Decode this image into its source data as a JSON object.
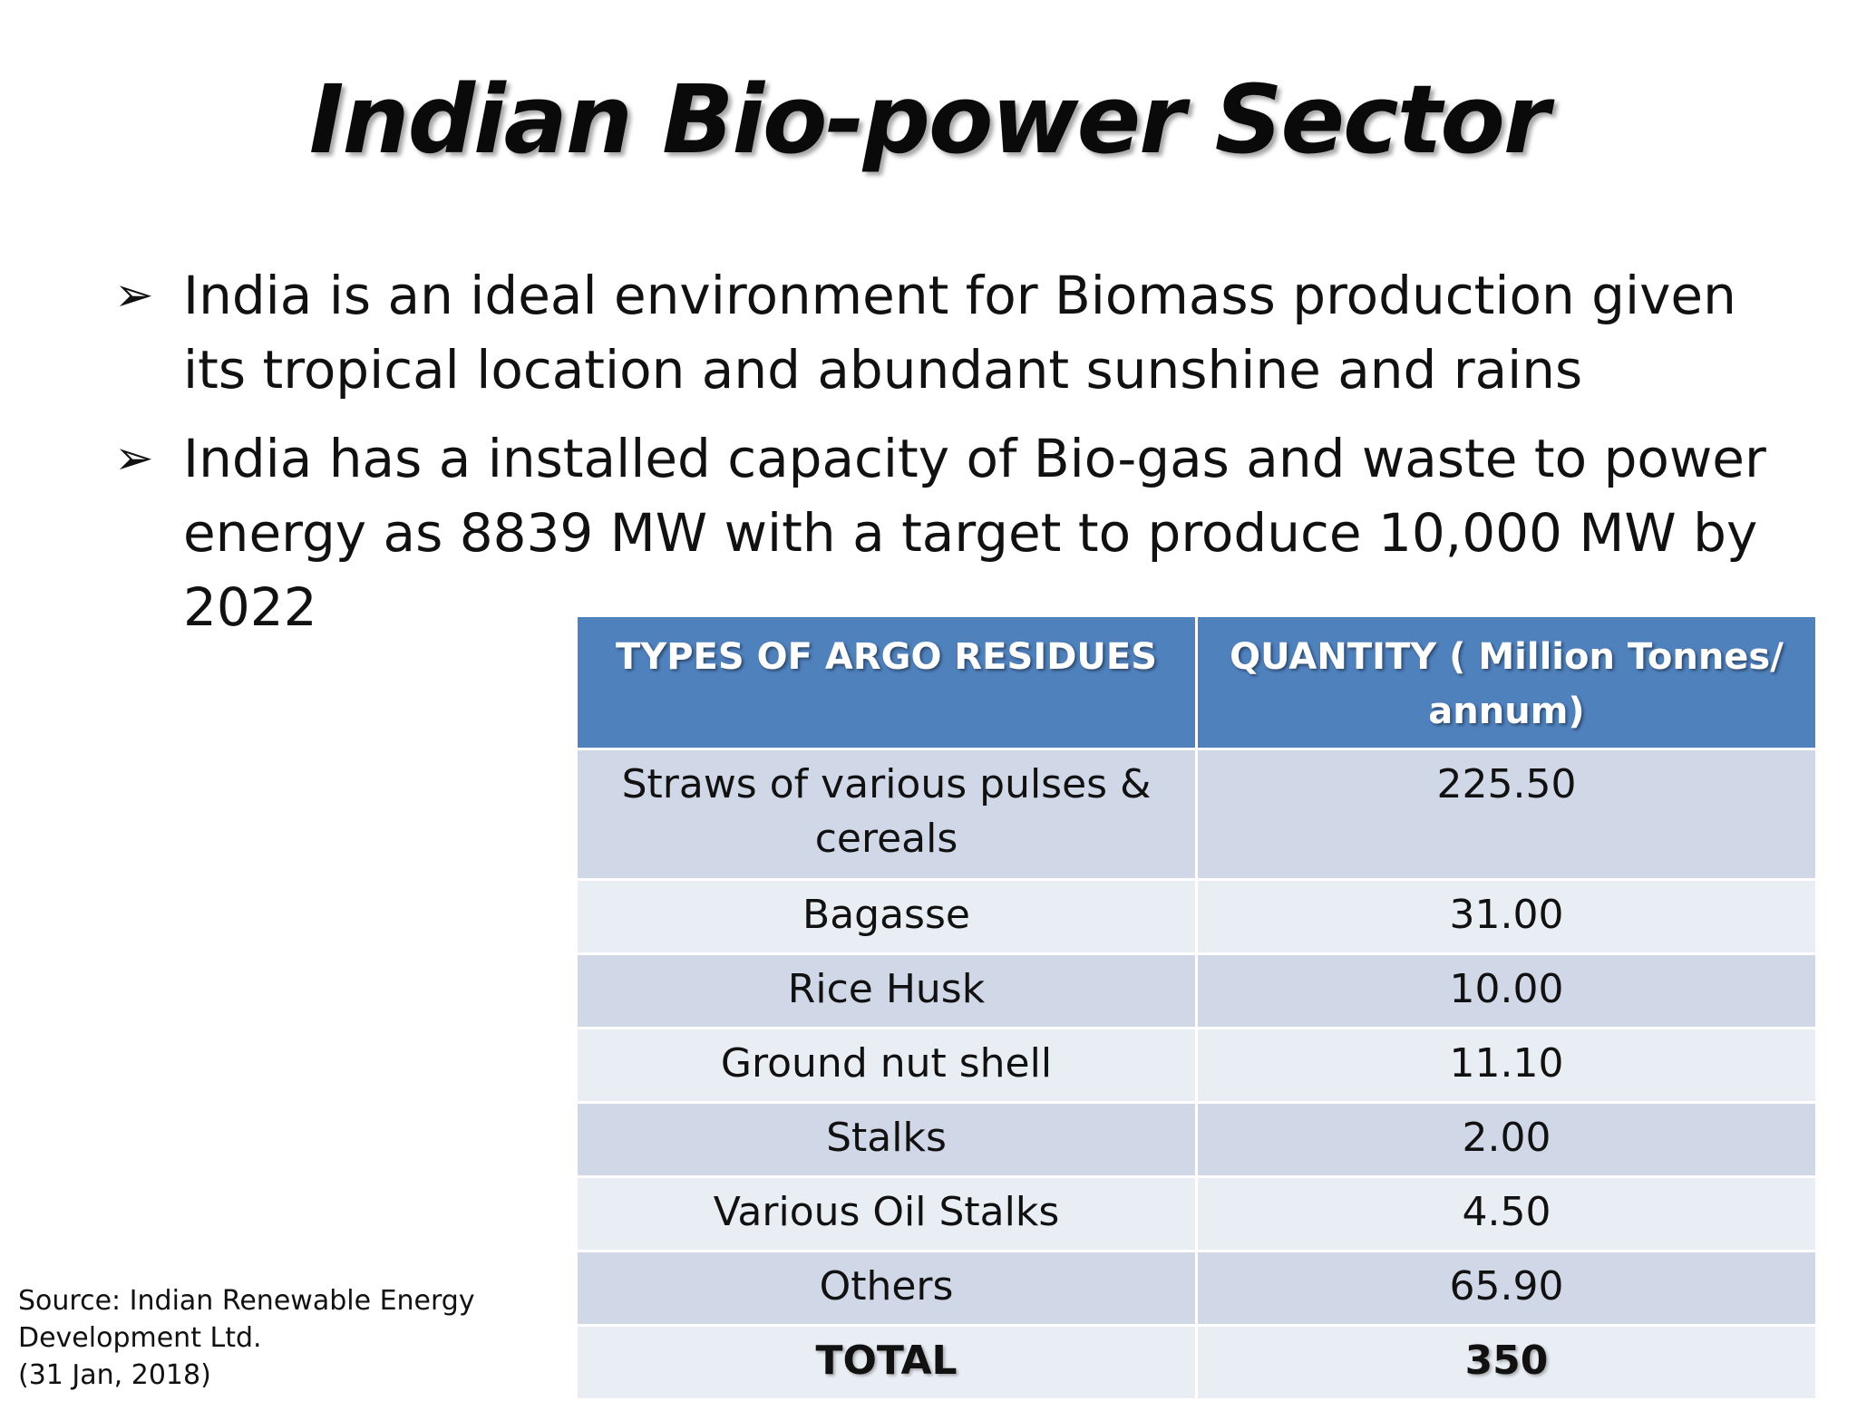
{
  "title": "Indian Bio-power Sector",
  "bullets": [
    {
      "marker": "➢",
      "text": "India is an ideal environment for Biomass production given its tropical location and abundant sunshine and rains"
    },
    {
      "marker": "➢",
      "text": "India has a installed capacity of Bio-gas and waste to power energy as 8839 MW with a target to produce 10,000 MW by 2022"
    }
  ],
  "table": {
    "headers": [
      "TYPES OF ARGO RESIDUES",
      "QUANTITY ( Million Tonnes/ annum)"
    ],
    "rows": [
      {
        "type": "Straws of various pulses & cereals",
        "quantity": "225.50"
      },
      {
        "type": "Bagasse",
        "quantity": "31.00"
      },
      {
        "type": "Rice Husk",
        "quantity": "10.00"
      },
      {
        "type": "Ground nut shell",
        "quantity": "11.10"
      },
      {
        "type": "Stalks",
        "quantity": "2.00"
      },
      {
        "type": "Various Oil Stalks",
        "quantity": "4.50"
      },
      {
        "type": "Others",
        "quantity": "65.90"
      }
    ],
    "total": {
      "label": "TOTAL",
      "quantity": "350"
    }
  },
  "source": {
    "lines": [
      "Source: Indian Renewable Energy",
      "Development Ltd.",
      "(31 Jan, 2018)"
    ]
  },
  "colors": {
    "header_bg": "#4f81bd",
    "row_dark": "#d0d8e8",
    "row_light": "#e9edf4"
  }
}
